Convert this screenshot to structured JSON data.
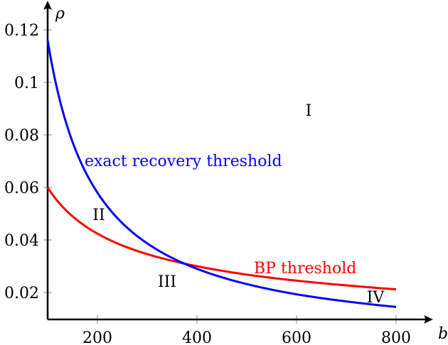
{
  "chart_data": {
    "type": "line",
    "title": "",
    "xlabel": "b",
    "ylabel": "ρ",
    "xlim": [
      100,
      800
    ],
    "ylim": [
      0.0097,
      0.13
    ],
    "grid": false,
    "legend": "none (inline curve labels)",
    "x_ticks": [
      200,
      400,
      600,
      800
    ],
    "x_tick_labels": [
      "200",
      "400",
      "600",
      "800"
    ],
    "y_ticks": [
      0.02,
      0.04,
      0.06,
      0.08,
      0.1,
      0.12
    ],
    "y_tick_labels": [
      "0.02",
      "0.04",
      "0.06",
      "0.08",
      "0.1",
      "0.12"
    ],
    "x": [
      100,
      150,
      200,
      250,
      300,
      365,
      400,
      500,
      600,
      700,
      800
    ],
    "series": [
      {
        "name": "exact recovery threshold",
        "color": "#0000ff",
        "values": [
          0.116,
          0.0773,
          0.058,
          0.0464,
          0.0387,
          0.0318,
          0.029,
          0.0232,
          0.0193,
          0.0166,
          0.0145
        ]
      },
      {
        "name": "BP threshold",
        "color": "#ff0000",
        "values": [
          0.06,
          0.049,
          0.0424,
          0.0379,
          0.0346,
          0.0314,
          0.03,
          0.0268,
          0.0245,
          0.0227,
          0.0212
        ]
      }
    ],
    "annotations": [
      {
        "text": "I",
        "x": 620,
        "y": 0.088
      },
      {
        "text": "II",
        "x": 205,
        "y": 0.048
      },
      {
        "text": "III",
        "x": 340,
        "y": 0.023
      },
      {
        "text": "IV",
        "x": 760,
        "y": 0.016
      },
      {
        "text": "exact recovery threshold",
        "x": 385,
        "y": 0.069,
        "color": "#0000ff"
      },
      {
        "text": "BP threshold",
        "x": 645,
        "y": 0.028,
        "color": "#ff0000"
      }
    ]
  },
  "labels": {
    "x_axis": "b",
    "y_axis": "ρ",
    "x_ticks": [
      "200",
      "400",
      "600",
      "800"
    ],
    "y_ticks": [
      "0.12",
      "0.1",
      "0.08",
      "0.06",
      "0.04",
      "0.02"
    ],
    "regions": [
      "I",
      "II",
      "III",
      "IV"
    ],
    "blue_curve": "exact recovery threshold",
    "red_curve": "BP threshold"
  }
}
